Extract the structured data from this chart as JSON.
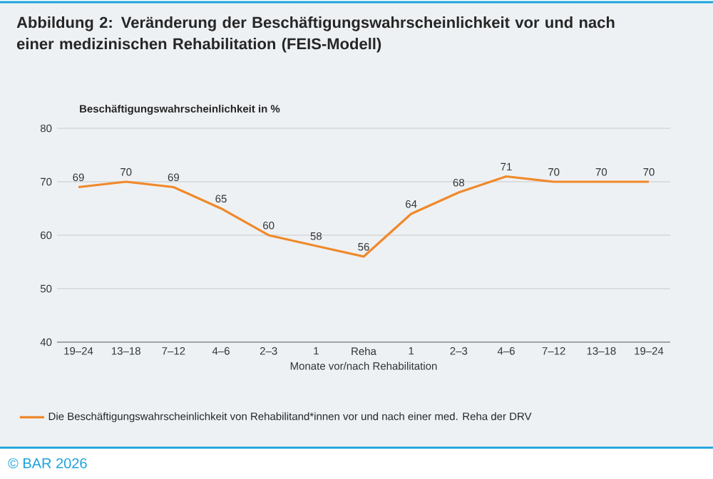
{
  "chart_data": {
    "type": "line",
    "title": "Abbildung 2: Veränderung der Beschäftigungswahrscheinlichkeit vor und nach einer medizinischen Rehabilitation (FEIS-Modell)",
    "ylabel": "Beschäftigungswahrscheinlichkeit in %",
    "xlabel": "Monate vor/nach Rehabilitation",
    "categories": [
      "19–24",
      "13–18",
      "7–12",
      "4–6",
      "2–3",
      "1",
      "Reha",
      "1",
      "2–3",
      "4–6",
      "7–12",
      "13–18",
      "19–24"
    ],
    "series": [
      {
        "name": "Die Beschäftigungswahrscheinlichkeit von Rehabilitand*innen vor und nach einer med. Reha der DRV",
        "color": "#f0892a",
        "values": [
          69,
          70,
          69,
          65,
          60,
          58,
          56,
          64,
          68,
          71,
          70,
          70,
          70
        ]
      }
    ],
    "ylim": [
      40,
      80
    ],
    "yticks": [
      40,
      50,
      60,
      70,
      80
    ],
    "grid": "y",
    "legend": "bottom",
    "data_labels": true,
    "marker": "none",
    "line_style": "solid",
    "annotations": [
      "© BAR 2026"
    ]
  }
}
